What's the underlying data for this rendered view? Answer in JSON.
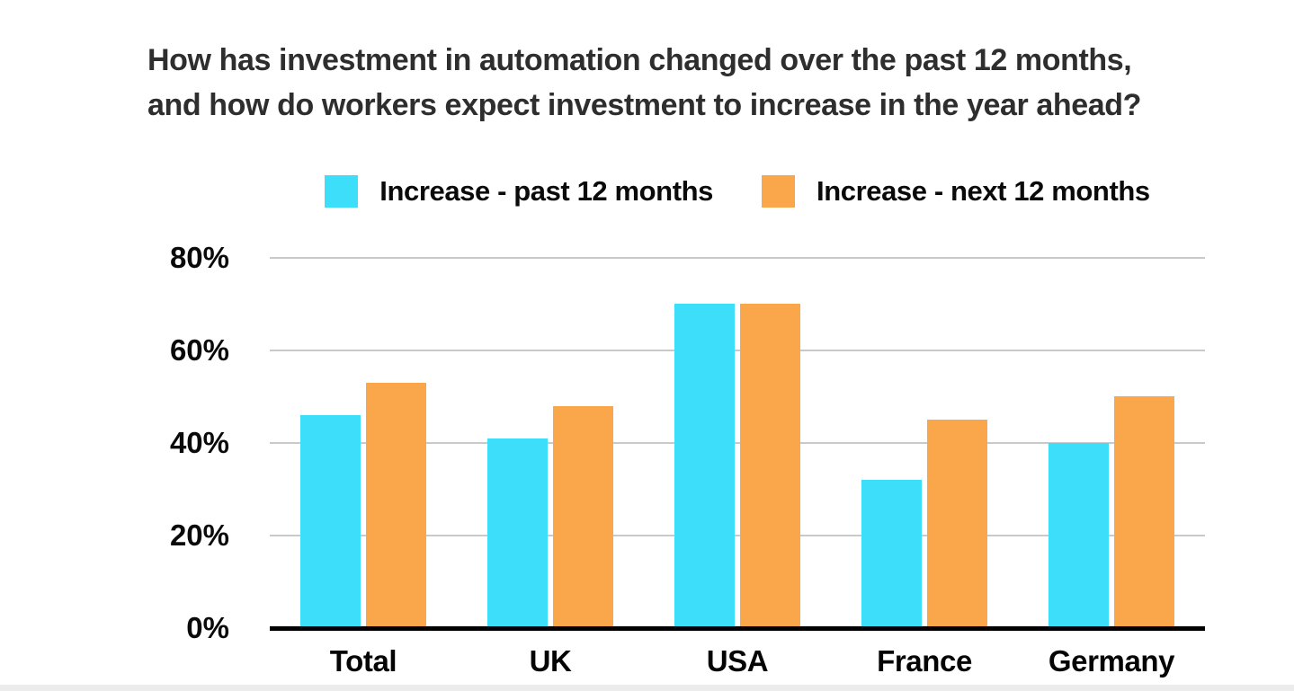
{
  "title": {
    "line1": "How has investment in automation changed over the past 12 months,",
    "line2": "and how do workers expect investment to increase in the year ahead?"
  },
  "legend": [
    {
      "label": "Increase - past 12 months",
      "color": "#3CDEF9"
    },
    {
      "label": "Increase - next 12 months",
      "color": "#FAA74B"
    }
  ],
  "chart_data": {
    "type": "bar",
    "title": "How has investment in automation changed over the past 12 months, and how do workers expect investment to increase in the year ahead?",
    "categories": [
      "Total",
      "UK",
      "USA",
      "France",
      "Germany"
    ],
    "series": [
      {
        "name": "Increase - past 12 months",
        "color": "#3CDEF9",
        "values": [
          46,
          41,
          70,
          32,
          40
        ]
      },
      {
        "name": "Increase - next 12 months",
        "color": "#FAA74B",
        "values": [
          53,
          48,
          70,
          45,
          50
        ]
      }
    ],
    "xlabel": "",
    "ylabel": "",
    "ylim": [
      0,
      80
    ],
    "yticks": [
      0,
      20,
      40,
      60,
      80
    ],
    "ytick_labels": [
      "0%",
      "20%",
      "40%",
      "60%",
      "80%"
    ],
    "grid": true,
    "legend_position": "top"
  },
  "colors": {
    "background": "#FFFFFF",
    "grid": "#C9C9C9",
    "axis": "#000000",
    "title_text": "#2E2E2E",
    "label_text": "#0A0A0A",
    "bottom_strip": "#ECECEC"
  }
}
